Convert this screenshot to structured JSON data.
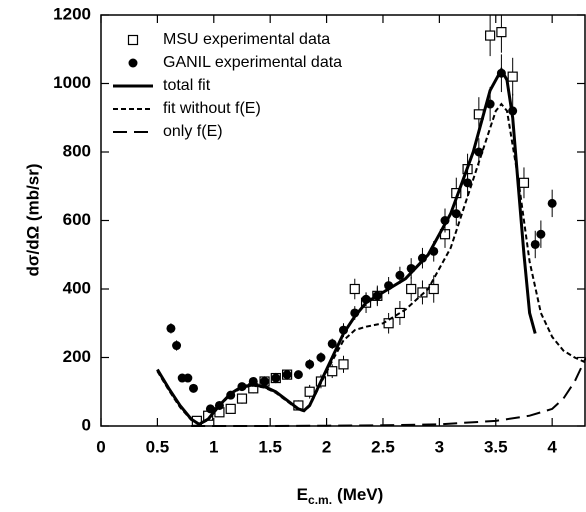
{
  "chart_data": {
    "type": "scatter",
    "ylabel": "dσ/dΩ (mb/sr)",
    "xlabel": "E",
    "xlabel_sub": "c.m.",
    "xlabel_unit": "(MeV)",
    "xlim": [
      0,
      4.3
    ],
    "ylim": [
      0,
      1200
    ],
    "xticks": [
      0,
      0.5,
      1,
      1.5,
      2,
      2.5,
      3,
      3.5,
      4
    ],
    "yticks": [
      0,
      200,
      400,
      600,
      800,
      1000,
      1200
    ],
    "legend": "upper left",
    "series": [
      {
        "name": "MSU experimental data",
        "kind": "scatter",
        "marker": "open-square",
        "color": "#000",
        "x": [
          0.85,
          0.95,
          1.05,
          1.15,
          1.25,
          1.35,
          1.45,
          1.55,
          1.65,
          1.75,
          1.85,
          1.95,
          2.05,
          2.15,
          2.25,
          2.35,
          2.45,
          2.55,
          2.65,
          2.75,
          2.85,
          2.95,
          3.05,
          3.15,
          3.25,
          3.35,
          3.45,
          3.55,
          3.65,
          3.75
        ],
        "values": [
          15,
          30,
          40,
          50,
          80,
          110,
          130,
          140,
          150,
          60,
          100,
          130,
          160,
          180,
          400,
          360,
          380,
          300,
          330,
          400,
          390,
          400,
          560,
          680,
          750,
          910,
          1140,
          1150,
          1020,
          710
        ],
        "errors": [
          10,
          10,
          10,
          12,
          15,
          15,
          15,
          15,
          15,
          15,
          20,
          20,
          20,
          25,
          30,
          30,
          30,
          30,
          35,
          35,
          35,
          40,
          40,
          45,
          45,
          50,
          60,
          60,
          55,
          45
        ]
      },
      {
        "name": "GANIL experimental data",
        "kind": "scatter",
        "marker": "filled-circle",
        "color": "#000",
        "x": [
          0.62,
          0.67,
          0.72,
          0.77,
          0.82,
          0.97,
          1.05,
          1.15,
          1.25,
          1.35,
          1.45,
          1.55,
          1.65,
          1.75,
          1.85,
          1.95,
          2.05,
          2.15,
          2.25,
          2.35,
          2.45,
          2.55,
          2.65,
          2.75,
          2.85,
          2.95,
          3.05,
          3.15,
          3.25,
          3.35,
          3.45,
          3.55,
          3.65,
          3.85,
          3.9,
          4.0
        ],
        "values": [
          285,
          235,
          140,
          140,
          110,
          50,
          60,
          90,
          115,
          130,
          130,
          140,
          150,
          150,
          180,
          200,
          240,
          280,
          330,
          370,
          380,
          410,
          440,
          460,
          490,
          510,
          600,
          620,
          710,
          800,
          940,
          1030,
          920,
          530,
          560,
          650
        ],
        "errors": [
          15,
          15,
          12,
          12,
          12,
          10,
          10,
          10,
          12,
          12,
          12,
          12,
          12,
          12,
          15,
          15,
          15,
          20,
          20,
          20,
          25,
          25,
          25,
          30,
          30,
          30,
          35,
          35,
          40,
          40,
          50,
          55,
          50,
          40,
          40,
          40
        ]
      },
      {
        "name": "total fit",
        "kind": "line",
        "dash": "solid",
        "color": "#000",
        "x": [
          0.5,
          0.6,
          0.7,
          0.8,
          0.87,
          0.95,
          1.05,
          1.15,
          1.25,
          1.35,
          1.45,
          1.55,
          1.65,
          1.75,
          1.8,
          1.85,
          1.95,
          2.05,
          2.15,
          2.25,
          2.35,
          2.5,
          2.7,
          2.9,
          3.1,
          3.3,
          3.45,
          3.55,
          3.6,
          3.65,
          3.7,
          3.75,
          3.8,
          3.85
        ],
        "values": [
          165,
          110,
          60,
          20,
          5,
          20,
          60,
          95,
          115,
          120,
          115,
          100,
          75,
          50,
          45,
          60,
          130,
          200,
          270,
          320,
          360,
          390,
          430,
          500,
          620,
          800,
          980,
          1040,
          1010,
          900,
          700,
          500,
          330,
          270
        ]
      },
      {
        "name": "fit without f(E)",
        "kind": "line",
        "dash": "short",
        "color": "#000",
        "x": [
          0.5,
          0.6,
          0.7,
          0.8,
          0.87,
          0.95,
          1.05,
          1.15,
          1.25,
          1.35,
          1.45,
          1.55,
          1.65,
          1.75,
          1.8,
          1.85,
          1.95,
          2.05,
          2.15,
          2.25,
          2.35,
          2.5,
          2.7,
          2.9,
          3.1,
          3.3,
          3.5,
          3.55,
          3.6,
          3.7,
          3.8,
          3.9,
          4.0,
          4.1,
          4.2,
          4.3
        ],
        "values": [
          160,
          105,
          55,
          18,
          4,
          18,
          58,
          92,
          112,
          118,
          112,
          97,
          72,
          48,
          43,
          58,
          125,
          190,
          250,
          280,
          290,
          300,
          340,
          400,
          520,
          720,
          920,
          940,
          920,
          720,
          480,
          330,
          260,
          220,
          200,
          185
        ]
      },
      {
        "name": "only f(E)",
        "kind": "line",
        "dash": "long",
        "color": "#000",
        "x": [
          0.8,
          1.5,
          2.0,
          2.5,
          3.0,
          3.5,
          3.8,
          4.0,
          4.1,
          4.2,
          4.3
        ],
        "values": [
          0,
          0,
          1,
          2,
          5,
          15,
          30,
          50,
          80,
          130,
          200
        ]
      }
    ]
  }
}
